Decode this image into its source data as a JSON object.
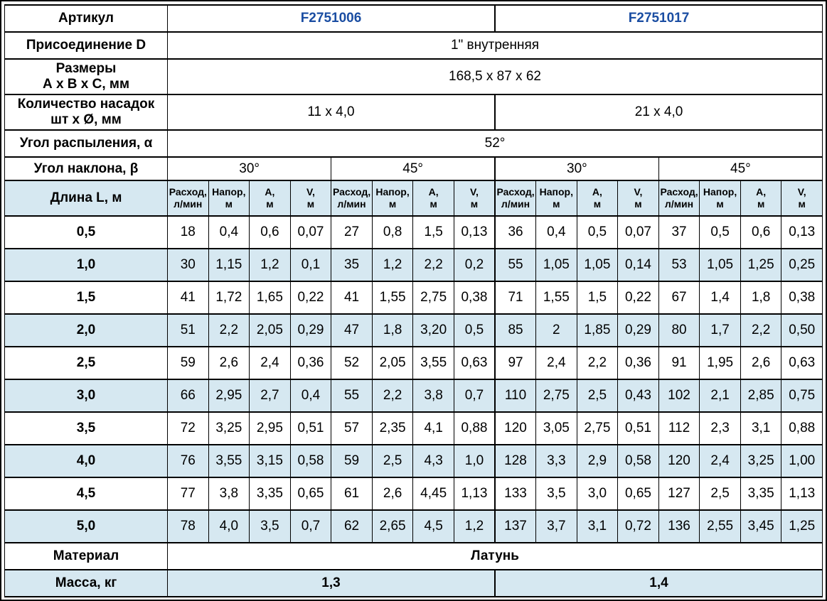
{
  "colors": {
    "row_tint": "#d6e8f1",
    "article_link_blue": "#1a4da2",
    "border": "#000000"
  },
  "spec": {
    "articul": {
      "label": "Артикул",
      "values": [
        "F2751006",
        "F2751017"
      ]
    },
    "connection": {
      "label": "Присоединение D",
      "value": "1\" внутренняя"
    },
    "dimensions": {
      "label_line1": "Размеры",
      "label_line2": "А х В х С, мм",
      "value": "168,5 x 87 x 62"
    },
    "nozzles": {
      "label_line1": "Количество насадок",
      "label_line2": "шт х Ø, мм",
      "values": [
        "11 x 4,0",
        "21 x 4,0"
      ]
    },
    "spray_angle": {
      "label": "Угол распыления, α",
      "value": "52°"
    },
    "tilt_angle": {
      "label": "Угол наклона, β",
      "values": [
        "30°",
        "45°",
        "30°",
        "45°"
      ]
    },
    "length_label": "Длина L, м",
    "material": {
      "label": "Материал",
      "value": "Латунь"
    },
    "mass": {
      "label": "Масса, кг",
      "values": [
        "1,3",
        "1,4"
      ]
    }
  },
  "measure_headers": [
    {
      "line1": "Расход,",
      "line2": "л/мин",
      "name": "flow"
    },
    {
      "line1": "Напор,",
      "line2": "м",
      "name": "head"
    },
    {
      "line1": "А,",
      "line2": "м",
      "name": "a"
    },
    {
      "line1": "V,",
      "line2": "м",
      "name": "v"
    }
  ],
  "rows": [
    {
      "length": "0,5",
      "values": [
        "18",
        "0,4",
        "0,6",
        "0,07",
        "27",
        "0,8",
        "1,5",
        "0,13",
        "36",
        "0,4",
        "0,5",
        "0,07",
        "37",
        "0,5",
        "0,6",
        "0,13"
      ]
    },
    {
      "length": "1,0",
      "values": [
        "30",
        "1,15",
        "1,2",
        "0,1",
        "35",
        "1,2",
        "2,2",
        "0,2",
        "55",
        "1,05",
        "1,05",
        "0,14",
        "53",
        "1,05",
        "1,25",
        "0,25"
      ]
    },
    {
      "length": "1,5",
      "values": [
        "41",
        "1,72",
        "1,65",
        "0,22",
        "41",
        "1,55",
        "2,75",
        "0,38",
        "71",
        "1,55",
        "1,5",
        "0,22",
        "67",
        "1,4",
        "1,8",
        "0,38"
      ]
    },
    {
      "length": "2,0",
      "values": [
        "51",
        "2,2",
        "2,05",
        "0,29",
        "47",
        "1,8",
        "3,20",
        "0,5",
        "85",
        "2",
        "1,85",
        "0,29",
        "80",
        "1,7",
        "2,2",
        "0,50"
      ]
    },
    {
      "length": "2,5",
      "values": [
        "59",
        "2,6",
        "2,4",
        "0,36",
        "52",
        "2,05",
        "3,55",
        "0,63",
        "97",
        "2,4",
        "2,2",
        "0,36",
        "91",
        "1,95",
        "2,6",
        "0,63"
      ]
    },
    {
      "length": "3,0",
      "values": [
        "66",
        "2,95",
        "2,7",
        "0,4",
        "55",
        "2,2",
        "3,8",
        "0,7",
        "110",
        "2,75",
        "2,5",
        "0,43",
        "102",
        "2,1",
        "2,85",
        "0,75"
      ]
    },
    {
      "length": "3,5",
      "values": [
        "72",
        "3,25",
        "2,95",
        "0,51",
        "57",
        "2,35",
        "4,1",
        "0,88",
        "120",
        "3,05",
        "2,75",
        "0,51",
        "112",
        "2,3",
        "3,1",
        "0,88"
      ]
    },
    {
      "length": "4,0",
      "values": [
        "76",
        "3,55",
        "3,15",
        "0,58",
        "59",
        "2,5",
        "4,3",
        "1,0",
        "128",
        "3,3",
        "2,9",
        "0,58",
        "120",
        "2,4",
        "3,25",
        "1,00"
      ]
    },
    {
      "length": "4,5",
      "values": [
        "77",
        "3,8",
        "3,35",
        "0,65",
        "61",
        "2,6",
        "4,45",
        "1,13",
        "133",
        "3,5",
        "3,0",
        "0,65",
        "127",
        "2,5",
        "3,35",
        "1,13"
      ]
    },
    {
      "length": "5,0",
      "values": [
        "78",
        "4,0",
        "3,5",
        "0,7",
        "62",
        "2,65",
        "4,5",
        "1,2",
        "137",
        "3,7",
        "3,1",
        "0,72",
        "136",
        "2,55",
        "3,45",
        "1,25"
      ]
    }
  ]
}
